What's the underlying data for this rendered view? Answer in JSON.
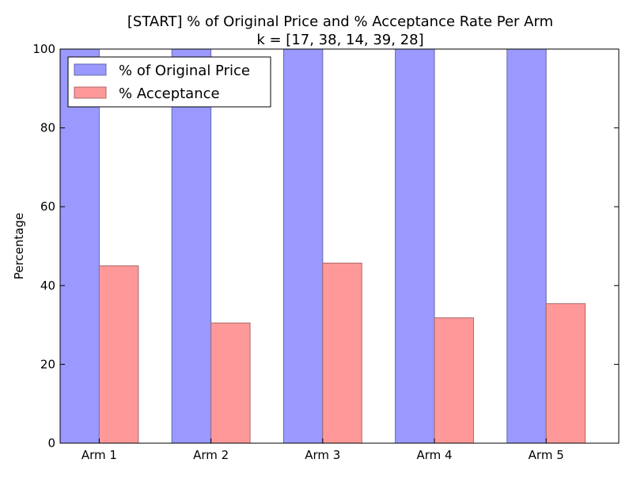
{
  "chart_data": {
    "type": "bar",
    "title": "[START] % of Original Price and % Acceptance Rate Per Arm",
    "subtitle": "k = [17, 38, 14, 39, 28]",
    "xlabel": "",
    "ylabel": "Percentage",
    "ylim": [
      0,
      100
    ],
    "yticks": [
      "0",
      "20",
      "40",
      "60",
      "80",
      "100"
    ],
    "categories": [
      "Arm 1",
      "Arm 2",
      "Arm 3",
      "Arm 4",
      "Arm 5"
    ],
    "series": [
      {
        "name": "% of Original Price",
        "color": "#9999ff",
        "values": [
          100,
          100,
          100,
          100,
          100
        ]
      },
      {
        "name": "% Acceptance",
        "color": "#ff9999",
        "values": [
          45,
          30.5,
          45.7,
          31.8,
          35.4
        ]
      }
    ],
    "legend": "top-left",
    "grid": false
  }
}
